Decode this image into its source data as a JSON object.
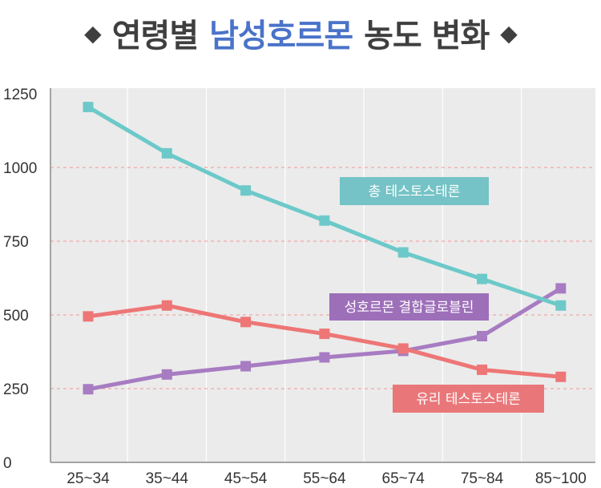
{
  "title": {
    "prefix": "연령별",
    "highlight": "남성호르몬",
    "suffix": "농도 변화",
    "diamond": "◆"
  },
  "colors": {
    "title_text": "#3f3f3f",
    "title_accent": "#4a73c9",
    "plot_background": "#ebebeb",
    "grid_dashed": "#f2a6a6",
    "grid_vertical": "#ffffff"
  },
  "chart_data": {
    "type": "line",
    "categories": [
      "25~34",
      "35~44",
      "45~54",
      "55~64",
      "65~74",
      "75~84",
      "85~100"
    ],
    "ylim": [
      0,
      1250
    ],
    "yticks": [
      0,
      250,
      500,
      750,
      1000,
      1250
    ],
    "grid": true,
    "series": [
      {
        "name": "총 테스토스테론",
        "color": "#6dc9c9",
        "label_color": "#75c3c6",
        "values": [
          1205,
          1048,
          922,
          820,
          712,
          622,
          532
        ]
      },
      {
        "name": "성호르몬 결합글로블린",
        "color": "#a77cc2",
        "label_color": "#9d6fb9",
        "values": [
          248,
          298,
          326,
          356,
          378,
          428,
          590
        ]
      },
      {
        "name": "유리 테스토스테론",
        "color": "#ee7676",
        "label_color": "#e9777a",
        "values": [
          495,
          532,
          476,
          436,
          386,
          314,
          290
        ]
      }
    ]
  }
}
